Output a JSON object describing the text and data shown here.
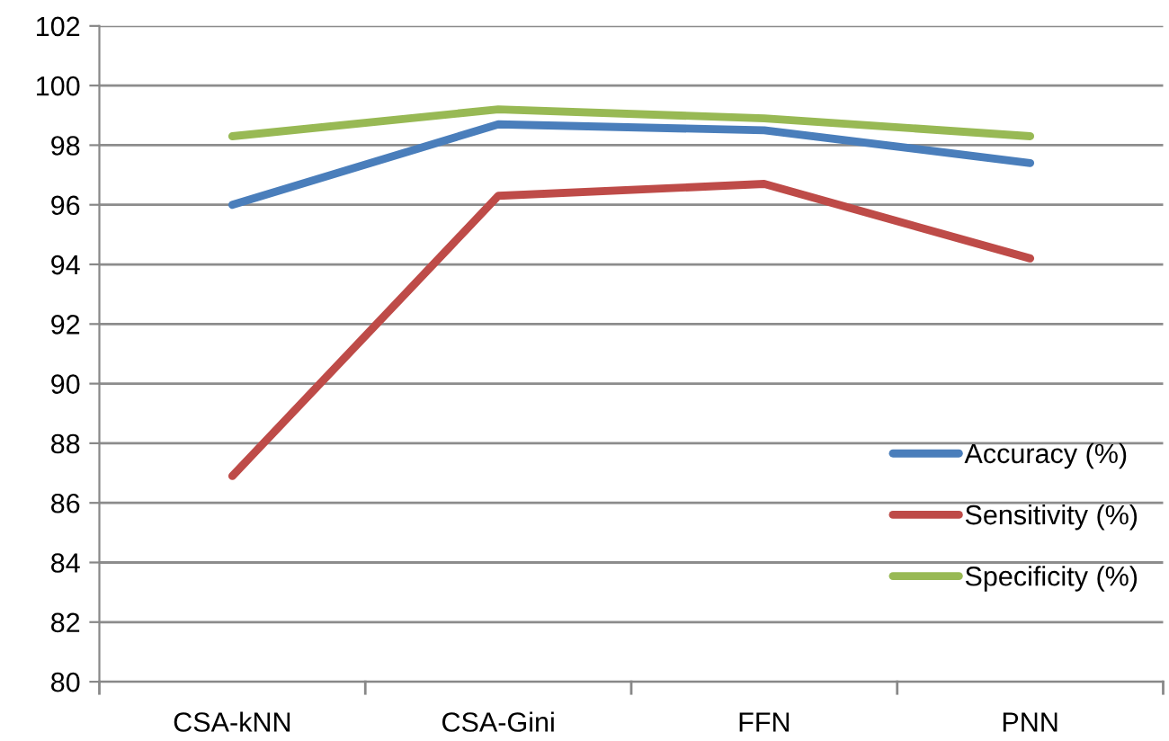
{
  "chart_data": {
    "type": "line",
    "categories": [
      "CSA-kNN",
      "CSA-Gini",
      "FFN",
      "PNN"
    ],
    "series": [
      {
        "name": "Accuracy (%)",
        "color": "#4a7ebb",
        "values": [
          96.0,
          98.7,
          98.5,
          97.4
        ]
      },
      {
        "name": "Sensitivity (%)",
        "color": "#be4b48",
        "values": [
          86.9,
          96.3,
          96.7,
          94.2
        ]
      },
      {
        "name": "Specificity (%)",
        "color": "#98b954",
        "values": [
          98.3,
          99.2,
          98.9,
          98.3
        ]
      }
    ],
    "ylim": [
      80,
      102
    ],
    "yticks": [
      80,
      82,
      84,
      86,
      88,
      90,
      92,
      94,
      96,
      98,
      100,
      102
    ],
    "grid": "y",
    "legend": "lower right",
    "marker": "none",
    "line_style": "solid"
  }
}
